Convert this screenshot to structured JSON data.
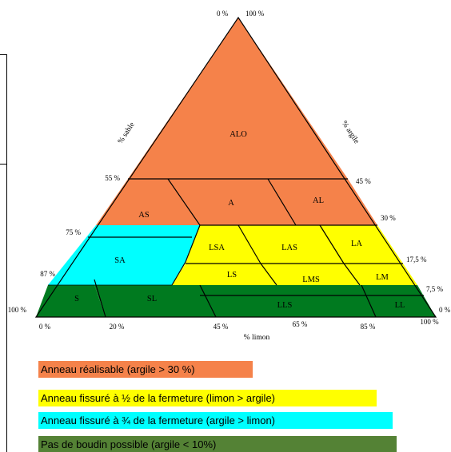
{
  "apex_labels": {
    "left": "0 %",
    "right": "100 %"
  },
  "axis_titles": {
    "sable": "% sable",
    "argile": "% argile",
    "limon": "% limon"
  },
  "left_ticks": [
    "55 %",
    "75 %",
    "87 %",
    "100 %"
  ],
  "right_ticks": [
    "45 %",
    "30 %",
    "17,5  %",
    "7,5 %",
    "0 %"
  ],
  "bottom_ticks": [
    "0 %",
    "20 %",
    "45 %",
    "65 %",
    "85 %",
    "100 %"
  ],
  "regions": [
    {
      "label": "ALO",
      "color": "#f5824a"
    },
    {
      "label": "A",
      "color": "#f5824a"
    },
    {
      "label": "AL",
      "color": "#f5824a"
    },
    {
      "label": "AS",
      "color": "#f5824a"
    },
    {
      "label": "LSA",
      "color": "#ffff00"
    },
    {
      "label": "LAS",
      "color": "#ffff00"
    },
    {
      "label": "LA",
      "color": "#ffff00"
    },
    {
      "label": "SA",
      "color": "#00ffff"
    },
    {
      "label": "LS",
      "color": "#ffff00"
    },
    {
      "label": "LMS",
      "color": "#ffff00"
    },
    {
      "label": "LM",
      "color": "#ffff00"
    },
    {
      "label": "S",
      "color": "#007a1f"
    },
    {
      "label": "SL",
      "color": "#007a1f"
    },
    {
      "label": "LLS",
      "color": "#007a1f"
    },
    {
      "label": "LL",
      "color": "#007a1f"
    }
  ],
  "legend": [
    {
      "text": "Anneau réalisable (argile > 30 %)",
      "color": "#f5824a"
    },
    {
      "text": "Anneau fissuré à ½ de la  fermeture (limon > argile)",
      "color": "#ffff00"
    },
    {
      "text": "Anneau fissuré à ¾ de la fermeture  (argile > limon)",
      "color": "#00ffff"
    },
    {
      "text": "Pas de boudin possible  (argile < 10%)",
      "color": "#548235"
    }
  ]
}
